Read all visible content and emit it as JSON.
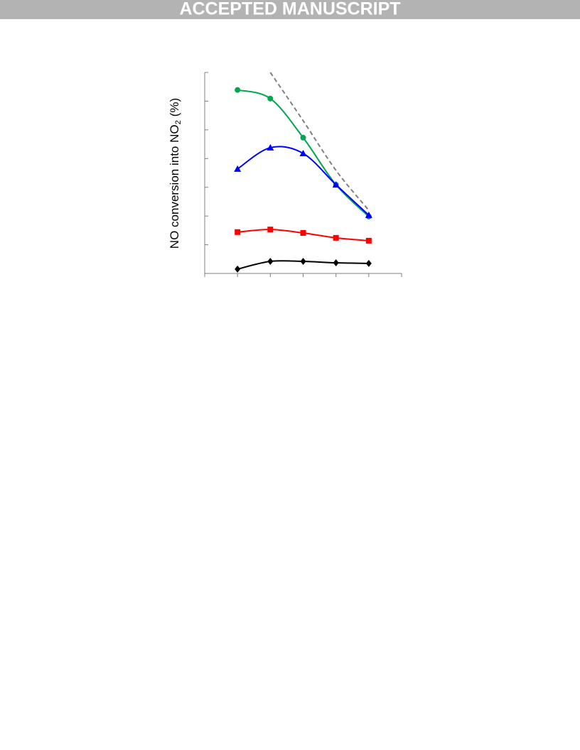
{
  "header": {
    "title": "ACCEPTED MANUSCRIPT"
  },
  "chart_data": {
    "type": "line",
    "ylabel": [
      "NO conversion into NO",
      "2",
      "(%)"
    ],
    "x": [
      1,
      2,
      3,
      4,
      5
    ],
    "xlim": [
      0,
      6
    ],
    "xticks": [
      0,
      1,
      2,
      3,
      4,
      5,
      6
    ],
    "ylim": [
      0,
      7
    ],
    "yticks": [
      0,
      1,
      2,
      3,
      4,
      5,
      6,
      7
    ],
    "series": [
      {
        "color": "#00a651",
        "marker": "circle",
        "values": [
          6.39,
          6.09,
          4.73,
          3.09,
          1.98
        ]
      },
      {
        "color": "#0000ff",
        "marker": "triangle",
        "values": [
          3.64,
          4.38,
          4.18,
          3.09,
          2.03
        ]
      },
      {
        "color": "#ff0000",
        "marker": "square",
        "values": [
          1.44,
          1.53,
          1.41,
          1.24,
          1.14
        ]
      },
      {
        "color": "#000000",
        "marker": "diamond",
        "values": [
          0.15,
          0.42,
          0.42,
          0.37,
          0.35
        ]
      },
      {
        "color": "#808080",
        "linestyle": "dashed",
        "values": [
          null,
          7.0,
          5.32,
          3.59,
          2.2
        ]
      }
    ]
  }
}
